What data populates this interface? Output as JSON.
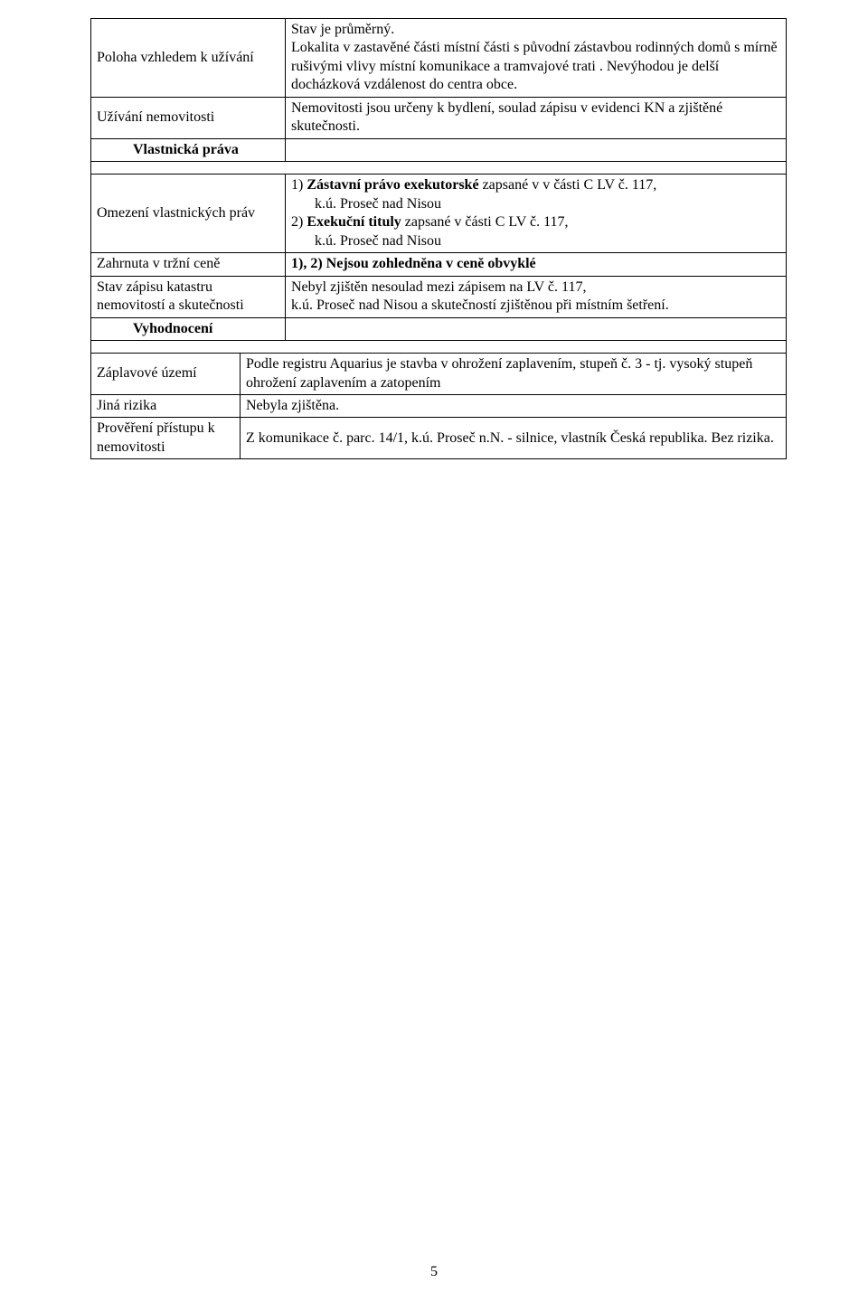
{
  "section1": {
    "rows": [
      {
        "label": "Poloha vzhledem k užívání",
        "content": "Stav je průměrný.\nLokalita v zastavěné části místní části s původní zástavbou rodinných domů s mírně rušivými vlivy místní komunikace a tramvajové trati . Nevýhodou je delší docházková vzdálenost do centra obce."
      },
      {
        "label": "Užívání nemovitosti",
        "content": "Nemovitosti jsou určeny k bydlení, soulad zápisu v evidenci KN a zjištěné skutečnosti."
      }
    ],
    "heading": "Vlastnická práva"
  },
  "section2": {
    "rows": [
      {
        "label": "Omezení vlastnických práv",
        "rich": [
          {
            "type": "line",
            "parts": [
              {
                "t": "1) "
              },
              {
                "t": "Zástavní právo exekutorské",
                "bold": true
              },
              {
                "t": " zapsané v v části C LV č. 117,"
              }
            ]
          },
          {
            "type": "indent",
            "parts": [
              {
                "t": "k.ú. Proseč nad Nisou"
              }
            ]
          },
          {
            "type": "line",
            "parts": [
              {
                "t": "2)  "
              },
              {
                "t": "Exekuční tituly",
                "bold": true
              },
              {
                "t": " zapsané v části C LV č. 117,"
              }
            ]
          },
          {
            "type": "indent",
            "parts": [
              {
                "t": "k.ú. Proseč nad Nisou"
              }
            ]
          }
        ]
      },
      {
        "label": "Zahrnuta v tržní ceně",
        "rich": [
          {
            "type": "line",
            "parts": [
              {
                "t": "1), 2) Nejsou zohledněna v ceně  obvyklé",
                "bold": true
              }
            ]
          }
        ]
      },
      {
        "label": "Stav zápisu katastru nemovitostí a skutečnosti",
        "rich": [
          {
            "type": "line",
            "parts": [
              {
                "t": "Nebyl zjištěn nesoulad mezi zápisem na LV č. 117,"
              }
            ]
          },
          {
            "type": "line",
            "parts": [
              {
                "t": "k.ú. Proseč nad Nisou a skutečností zjištěnou při místním šetření."
              }
            ]
          }
        ]
      }
    ],
    "heading": "Vyhodnocení"
  },
  "section3": {
    "rows": [
      {
        "label": "Záplavové území",
        "content": "Podle registru Aquarius je  stavba v ohrožení zaplavením, stupeň č. 3  - tj. vysoký stupeň ohrožení zaplavením a zatopením"
      },
      {
        "label": "Jiná rizika",
        "content": "Nebyla zjištěna."
      },
      {
        "label": "Prověření přístupu k nemovitosti",
        "content": "Z komunikace č. parc. 14/1, k.ú. Proseč n.N. - silnice, vlastník Česká republika. Bez rizika."
      }
    ]
  },
  "pageNumber": "5"
}
